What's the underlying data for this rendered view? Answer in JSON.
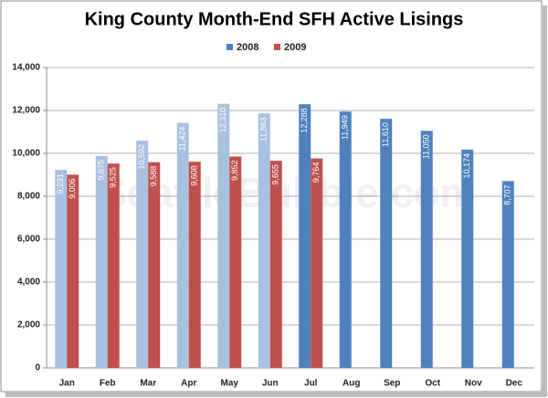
{
  "chart_data": {
    "type": "bar",
    "title": "King County Month-End SFH Active Lisings",
    "watermark": "SeattleBubble.com",
    "categories": [
      "Jan",
      "Feb",
      "Mar",
      "Apr",
      "May",
      "Jun",
      "Jul",
      "Aug",
      "Sep",
      "Oct",
      "Nov",
      "Dec"
    ],
    "series": [
      {
        "name": "2008",
        "color": "#4f81bd",
        "colors": [
          "#a9c1e0",
          "#a9c1e0",
          "#a9c1e0",
          "#a9c1e0",
          "#a9c1e0",
          "#a9c1e0",
          "#4f81bd",
          "#4f81bd",
          "#4f81bd",
          "#4f81bd",
          "#4f81bd",
          "#4f81bd"
        ],
        "values": [
          9231,
          9875,
          10592,
          11424,
          12310,
          11863,
          12288,
          11949,
          11610,
          11050,
          10174,
          8707
        ],
        "value_labels": [
          "9,231",
          "9,875",
          "10,592",
          "11,424",
          "12,310",
          "11,863",
          "12,288",
          "11,949",
          "11,610",
          "11,050",
          "10,174",
          "8,707"
        ]
      },
      {
        "name": "2009",
        "color": "#c0504d",
        "values": [
          9006,
          9525,
          9588,
          9608,
          9852,
          9655,
          9764,
          null,
          null,
          null,
          null,
          null
        ],
        "value_labels": [
          "9,006",
          "9,525",
          "9,588",
          "9,608",
          "9,852",
          "9,655",
          "9,764",
          null,
          null,
          null,
          null,
          null
        ]
      }
    ],
    "ylim": [
      0,
      14000
    ],
    "yticks": [
      0,
      {
        "value": 2000,
        "label": "2,000"
      },
      {
        "value": 4000,
        "label": "4,000"
      },
      {
        "value": 6000,
        "label": "6,000"
      },
      {
        "value": 8000,
        "label": "8,000"
      },
      {
        "value": 10000,
        "label": "10,000"
      },
      {
        "value": 12000,
        "label": "12,000"
      },
      {
        "value": 14000,
        "label": "14,000"
      }
    ],
    "grid": true,
    "legend": "top"
  }
}
